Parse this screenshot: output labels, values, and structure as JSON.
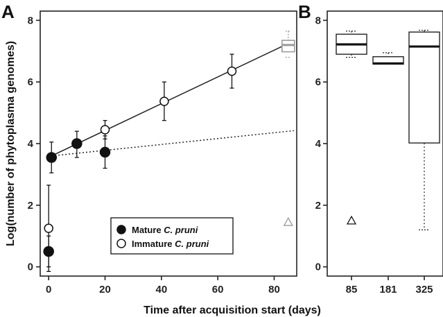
{
  "figure": {
    "panel_a_label": "A",
    "panel_b_label": "B",
    "xlabel": "Time after acquisition start (days)",
    "ylabel": "Log(number of phytoplasma genomes)"
  },
  "legend": {
    "items": [
      {
        "marker": "filled-circle",
        "text_plain": "Mature ",
        "text_italic": "C. pruni"
      },
      {
        "marker": "open-circle",
        "text_plain": "Immature ",
        "text_italic": "C. pruni"
      }
    ]
  },
  "chart_data": [
    {
      "type": "scatter",
      "panel": "A",
      "xlabel": "Time after acquisition start (days)",
      "ylabel": "Log(number of phytoplasma genomes)",
      "xlim": [
        -3,
        88
      ],
      "ylim": [
        -0.3,
        8.3
      ],
      "xticks": [
        0,
        20,
        40,
        60,
        80
      ],
      "yticks": [
        0,
        2,
        4,
        6,
        8
      ],
      "grid": false,
      "legend_position": "bottom-center",
      "series": [
        {
          "name": "Mature C. pruni",
          "marker": "filled-circle",
          "points": [
            {
              "x": 0,
              "y": 0.5,
              "lo": 0.0,
              "hi": 1.0
            },
            {
              "x": 1,
              "y": 3.55,
              "lo": 3.05,
              "hi": 4.05
            },
            {
              "x": 10,
              "y": 4.0,
              "lo": 3.55,
              "hi": 4.4
            },
            {
              "x": 20,
              "y": 3.72,
              "lo": 3.2,
              "hi": 4.25
            }
          ]
        },
        {
          "name": "Immature C. pruni",
          "marker": "open-circle",
          "points": [
            {
              "x": 0,
              "y": 1.25,
              "lo": -0.15,
              "hi": 2.65
            },
            {
              "x": 20,
              "y": 4.45,
              "lo": 4.15,
              "hi": 4.75
            },
            {
              "x": 41,
              "y": 5.37,
              "lo": 4.75,
              "hi": 6.0
            },
            {
              "x": 65,
              "y": 6.35,
              "lo": 5.8,
              "hi": 6.9
            }
          ]
        }
      ],
      "lines": [
        {
          "style": "solid",
          "x": [
            1,
            85
          ],
          "y": [
            3.6,
            7.25
          ]
        },
        {
          "style": "dotted",
          "x": [
            1,
            87
          ],
          "y": [
            3.6,
            4.42
          ]
        }
      ],
      "extra_markers": [
        {
          "shape": "box",
          "color": "#9a9a9a",
          "x": 85,
          "q1": 6.98,
          "median": 7.2,
          "q3": 7.35,
          "min": 6.8,
          "max": 7.65
        },
        {
          "shape": "open-triangle",
          "color": "#9a9a9a",
          "x": 85,
          "y": 1.45
        }
      ]
    },
    {
      "type": "box",
      "panel": "B",
      "categories": [
        "85",
        "181",
        "325"
      ],
      "ylim": [
        -0.3,
        8.3
      ],
      "yticks": [
        0,
        2,
        4,
        6,
        8
      ],
      "grid": false,
      "boxes": [
        {
          "category": "85",
          "min": 6.8,
          "q1": 6.9,
          "median": 7.22,
          "q3": 7.55,
          "max": 7.65,
          "outliers": [
            1.5
          ],
          "outlier_marker": "open-triangle"
        },
        {
          "category": "181",
          "min": 6.58,
          "q1": 6.58,
          "median": 6.6,
          "q3": 6.82,
          "max": 6.95,
          "outliers": []
        },
        {
          "category": "325",
          "min": 1.2,
          "q1": 4.02,
          "median": 7.15,
          "q3": 7.62,
          "max": 7.68,
          "outliers": []
        }
      ]
    }
  ]
}
